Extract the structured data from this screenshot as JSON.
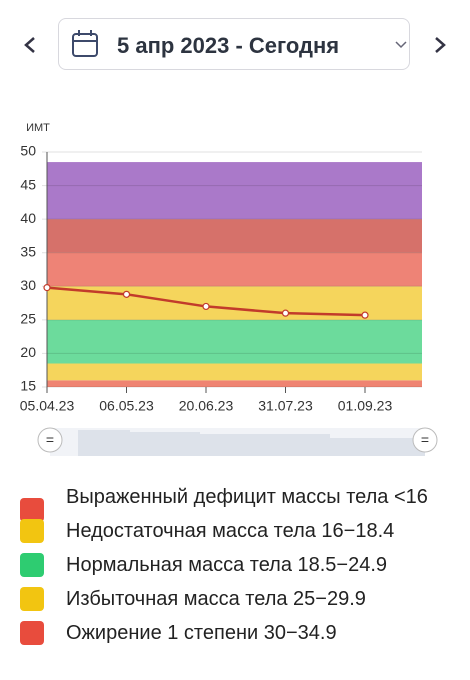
{
  "header": {
    "date_range": "5 апр 2023 - Сегодня"
  },
  "chart_data": {
    "type": "line",
    "y_label": "ИМТ",
    "categories": [
      "05.04.23",
      "06.05.23",
      "20.06.23",
      "31.07.23",
      "01.09.23"
    ],
    "series": [
      {
        "color": "#c23b2b",
        "values": [
          29.8,
          28.8,
          27.0,
          26.0,
          25.7
        ]
      }
    ],
    "ylim": [
      15,
      50
    ],
    "yticks": [
      15,
      20,
      25,
      30,
      35,
      40,
      45,
      50
    ],
    "grid": true,
    "bands": [
      {
        "from": 15,
        "to": 16,
        "color": "#ef8472"
      },
      {
        "from": 16,
        "to": 18.5,
        "color": "#f5d55c"
      },
      {
        "from": 18.5,
        "to": 25,
        "color": "#6cdb9c"
      },
      {
        "from": 25,
        "to": 30,
        "color": "#f5d55c"
      },
      {
        "from": 30,
        "to": 35,
        "color": "#ee8376"
      },
      {
        "from": 35,
        "to": 40,
        "color": "#d6716a"
      },
      {
        "from": 40,
        "to": 48.5,
        "color": "#aa79c9"
      }
    ]
  },
  "legend": {
    "items": [
      {
        "label": "Выраженный дефицит массы тела <16",
        "color": "#e84c3d"
      },
      {
        "label": "Недостаточная масса тела 16−18.4",
        "color": "#f2c511"
      },
      {
        "label": "Нормальная масса тела 18.5−24.9",
        "color": "#2ecc71"
      },
      {
        "label": "Избыточная масса тела 25−29.9",
        "color": "#f2c511"
      },
      {
        "label": "Ожирение 1 степени 30−34.9",
        "color": "#e84c3d"
      }
    ]
  }
}
